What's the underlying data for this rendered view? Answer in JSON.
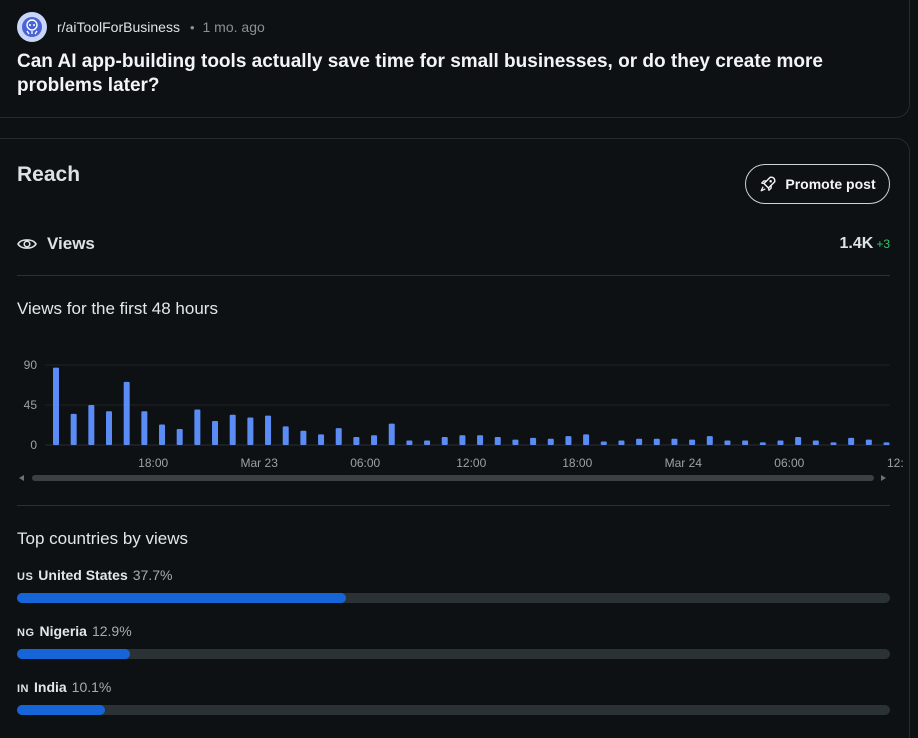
{
  "post": {
    "subreddit": "r/aiToolForBusiness",
    "separator": "•",
    "age": "1 mo. ago",
    "title": "Can AI app-building tools actually save time for small businesses, or do they create more problems later?"
  },
  "reach": {
    "title": "Reach",
    "promote_label": "Promote post",
    "views_label": "Views",
    "views_value": "1.4K",
    "views_delta": "+3",
    "chart_label": "Views for the first 48 hours",
    "countries_label": "Top countries by views"
  },
  "countries": [
    {
      "code": "US",
      "name": "United States",
      "pct_text": "37.7%",
      "pct": 37.7
    },
    {
      "code": "NG",
      "name": "Nigeria",
      "pct_text": "12.9%",
      "pct": 12.9
    },
    {
      "code": "IN",
      "name": "India",
      "pct_text": "10.1%",
      "pct": 10.1
    }
  ],
  "colors": {
    "bar": "#5b8cf5",
    "country_fill": "#1565d8",
    "delta": "#2ec46a"
  },
  "chart_data": {
    "type": "bar",
    "title": "Views for the first 48 hours",
    "y_ticks": [
      0,
      45,
      90
    ],
    "ylim": [
      0,
      90
    ],
    "x_tick_labels": [
      {
        "label": "18:00",
        "index": 5
      },
      {
        "label": "Mar 23",
        "index": 11
      },
      {
        "label": "06:00",
        "index": 17
      },
      {
        "label": "12:00",
        "index": 23
      },
      {
        "label": "18:00",
        "index": 29
      },
      {
        "label": "Mar 24",
        "index": 35
      },
      {
        "label": "06:00",
        "index": 41
      },
      {
        "label": "12:",
        "index": 47
      }
    ],
    "values": [
      87,
      35,
      45,
      38,
      71,
      38,
      23,
      18,
      40,
      27,
      34,
      31,
      33,
      21,
      16,
      12,
      19,
      9,
      11,
      24,
      5,
      5,
      9,
      11,
      11,
      9,
      6,
      8,
      7,
      10,
      12,
      4,
      5,
      7,
      7,
      7,
      6,
      10,
      5,
      5,
      3,
      5,
      9,
      5,
      3,
      8,
      6,
      3
    ],
    "grid": true
  }
}
